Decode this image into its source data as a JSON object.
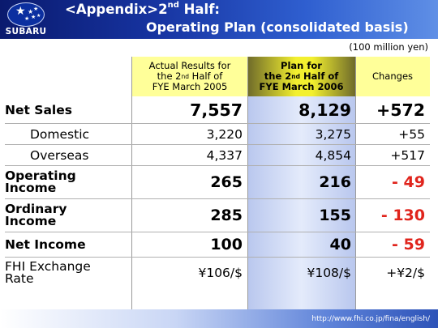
{
  "header": {
    "logo_text": "SUBARU",
    "title_line1_prefix": "<Appendix>2",
    "title_line1_sup": "nd",
    "title_line1_suffix": " Half:",
    "title_line2": "Operating Plan (consolidated basis)"
  },
  "unit_note": "(100 million yen)",
  "columns": {
    "actual": {
      "line1": "Actual Results for",
      "line2_prefix": "the 2",
      "line2_sup": "nd",
      "line2_suffix": " Half of",
      "line3": "FYE March 2005"
    },
    "plan": {
      "line1": "Plan for",
      "line2_prefix": "the 2",
      "line2_sup": "nd",
      "line2_suffix": " Half of",
      "line3": "FYE March 2006"
    },
    "changes": {
      "label": "Changes"
    }
  },
  "rows": {
    "net_sales": {
      "label": "Net Sales",
      "actual": "7,557",
      "plan": "8,129",
      "change": "+572"
    },
    "domestic": {
      "label": "Domestic",
      "actual": "3,220",
      "plan": "3,275",
      "change": "+55"
    },
    "overseas": {
      "label": "Overseas",
      "actual": "4,337",
      "plan": "4,854",
      "change": "+517"
    },
    "operating_income": {
      "label_line1": "Operating",
      "label_line2": "Income",
      "actual": "265",
      "plan": "216",
      "change": "- 49"
    },
    "ordinary_income": {
      "label_line1": "Ordinary",
      "label_line2": "Income",
      "actual": "285",
      "plan": "155",
      "change": "- 130"
    },
    "net_income": {
      "label": "Net Income",
      "actual": "100",
      "plan": "40",
      "change": "- 59"
    },
    "fhi_exchange_rate": {
      "label_line1": "FHI Exchange",
      "label_line2": "Rate",
      "actual": "¥106/$",
      "plan": "¥108/$",
      "change": "+¥2/$"
    }
  },
  "footer": {
    "url": "http://www.fhi.co.jp/fina/english/"
  },
  "colors": {
    "header_dark": "#0a1a6e",
    "header_light": "#5f8fe6",
    "header_cell_yellow": "#ffff99",
    "negative_red": "#e0241c"
  }
}
